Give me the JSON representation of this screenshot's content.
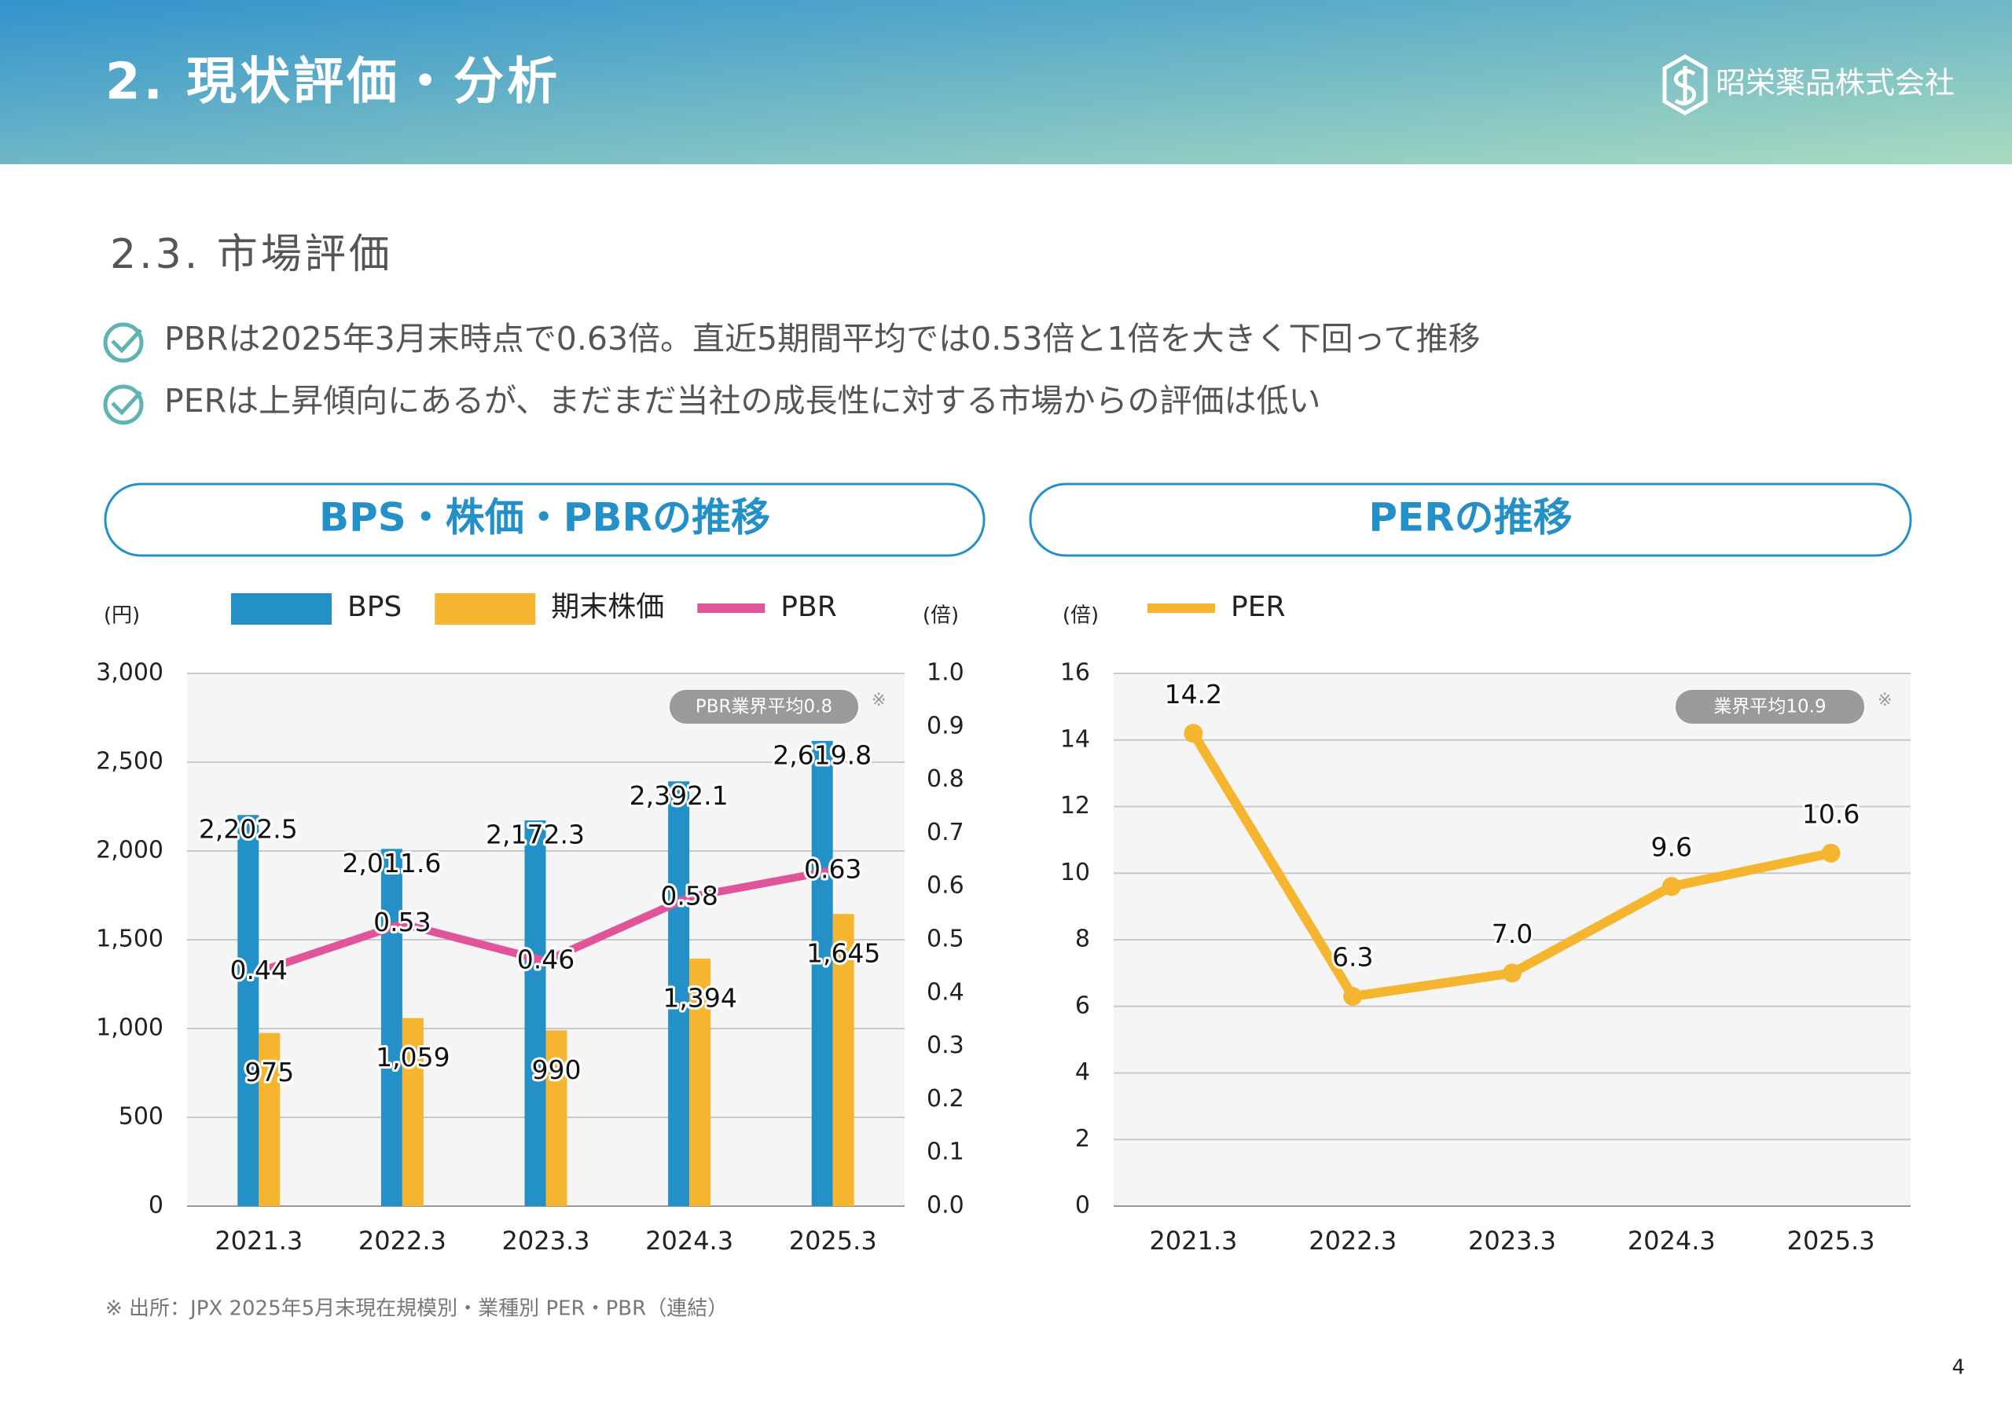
{
  "header": {
    "title": "2. 現状評価・分析",
    "company": "昭栄薬品株式会社"
  },
  "section": "2.3. 市場評価",
  "bullets": [
    "PBRは2025年3月末時点で0.63倍。直近5期間平均では0.53倍と1倍を大きく下回って推移",
    "PERは上昇傾向にあるが、まだまだ当社の成長性に対する市場からの評価は低い"
  ],
  "chart_data": [
    {
      "type": "bar",
      "title": "BPS・株価・PBRの推移",
      "y_label": "(円)",
      "y2_label": "(倍)",
      "categories": [
        "2021.3",
        "2022.3",
        "2023.3",
        "2024.3",
        "2025.3"
      ],
      "series": [
        {
          "name": "BPS",
          "color": "#2490c8",
          "values": [
            2202.5,
            2011.6,
            2172.3,
            2392.1,
            2619.8
          ],
          "value_labels": [
            "2,202.5",
            "2,011.6",
            "2,172.3",
            "2,392.1",
            "2,619.8"
          ]
        },
        {
          "name": "期末株価",
          "color": "#f6b52e",
          "values": [
            975,
            1059,
            990,
            1394,
            1645
          ],
          "value_labels": [
            "975",
            "1,059",
            "990",
            "1,394",
            "1,645"
          ]
        },
        {
          "name": "PBR",
          "color": "#e0559a",
          "type": "line",
          "axis": "y2",
          "values": [
            0.44,
            0.53,
            0.46,
            0.58,
            0.63
          ]
        }
      ],
      "ylim": [
        0,
        3000
      ],
      "yticks": [
        0,
        500,
        {
          "value": 1000,
          "label": "1,000"
        },
        {
          "value": 1500,
          "label": "1,500"
        },
        {
          "value": 2000,
          "label": "2,000"
        },
        {
          "value": 2500,
          "label": "2,500"
        },
        {
          "value": 3000,
          "label": "3,000"
        }
      ],
      "y2lim": [
        0,
        1
      ],
      "y2ticks": [
        {
          "value": 0,
          "label": "0.0"
        },
        0.1,
        0.2,
        0.3,
        0.4,
        0.5,
        0.6,
        0.7,
        0.8,
        0.9,
        {
          "value": 1,
          "label": "1.0"
        }
      ],
      "grid": true,
      "annotation": "PBR業界平均0.8",
      "annotation_mark": "※"
    },
    {
      "type": "line",
      "title": "PERの推移",
      "y_label": "(倍)",
      "categories": [
        "2021.3",
        "2022.3",
        "2023.3",
        "2024.3",
        "2025.3"
      ],
      "series": [
        {
          "name": "PER",
          "color": "#f6b52e",
          "values": [
            14.2,
            6.3,
            7.0,
            9.6,
            10.6
          ],
          "value_labels": [
            "14.2",
            "6.3",
            "7.0",
            "9.6",
            "10.6"
          ]
        }
      ],
      "ylim": [
        0,
        16
      ],
      "yticks": [
        0,
        2,
        4,
        6,
        8,
        10,
        12,
        14,
        16
      ],
      "grid": true,
      "annotation": "業界平均10.9",
      "annotation_mark": "※"
    }
  ],
  "footnote": "※ 出所：JPX 2025年5月末現在規模別・業種別 PER・PBR（連結）",
  "page_number": "4"
}
